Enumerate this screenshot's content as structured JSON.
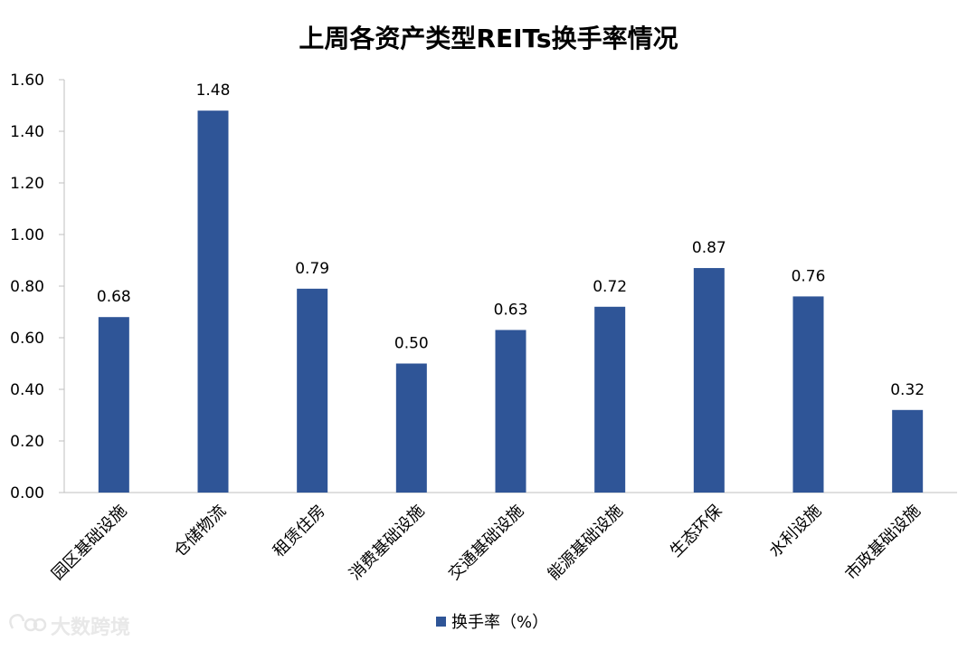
{
  "chart_data": {
    "type": "bar",
    "title": "上周各资产类型REITs换手率情况",
    "xlabel": "",
    "ylabel": "",
    "ylim": [
      0,
      1.6
    ],
    "yticks": [
      "0.00",
      "0.20",
      "0.40",
      "0.60",
      "0.80",
      "1.00",
      "1.20",
      "1.40",
      "1.60"
    ],
    "categories": [
      "园区基础设施",
      "仓储物流",
      "租赁住房",
      "消费基础设施",
      "交通基础设施",
      "能源基础设施",
      "生态环保",
      "水利设施",
      "市政基础设施"
    ],
    "series": [
      {
        "name": "换手率（%）",
        "values": [
          0.68,
          1.48,
          0.79,
          0.5,
          0.63,
          0.72,
          0.87,
          0.76,
          0.32
        ],
        "labels": [
          "0.68",
          "1.48",
          "0.79",
          "0.50",
          "0.63",
          "0.72",
          "0.87",
          "0.76",
          "0.32"
        ],
        "color": "#2f5597"
      }
    ],
    "grid": false,
    "legend": "bottom"
  },
  "watermark": {
    "text": "大数跨境"
  }
}
